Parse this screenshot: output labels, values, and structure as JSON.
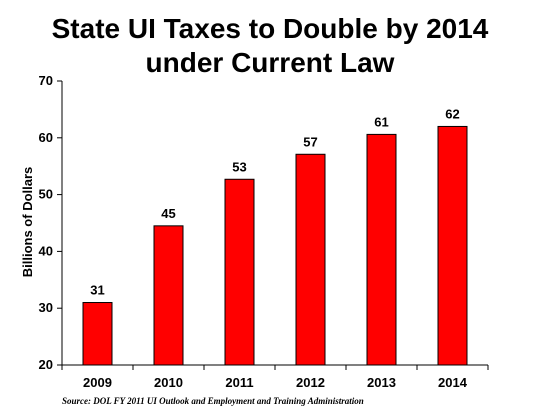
{
  "chart_data": {
    "type": "bar",
    "title_lines": [
      "State UI Taxes to Double by 2014",
      "under Current Law"
    ],
    "categories": [
      "2009",
      "2010",
      "2011",
      "2012",
      "2013",
      "2014"
    ],
    "values": [
      31,
      44.5,
      52.7,
      57.1,
      60.6,
      62
    ],
    "data_labels": [
      "31",
      "45",
      "53",
      "57",
      "61",
      "62"
    ],
    "ylabel": "Billions of Dollars",
    "xlabel": "",
    "ylim": [
      20,
      70
    ],
    "yticks": [
      20,
      30,
      40,
      50,
      60,
      70
    ],
    "bar_color": "#ff0000",
    "grid": false,
    "legend": "none"
  },
  "source_note": "Source: DOL FY 2011 UI Outlook and Employment and Training Administration"
}
